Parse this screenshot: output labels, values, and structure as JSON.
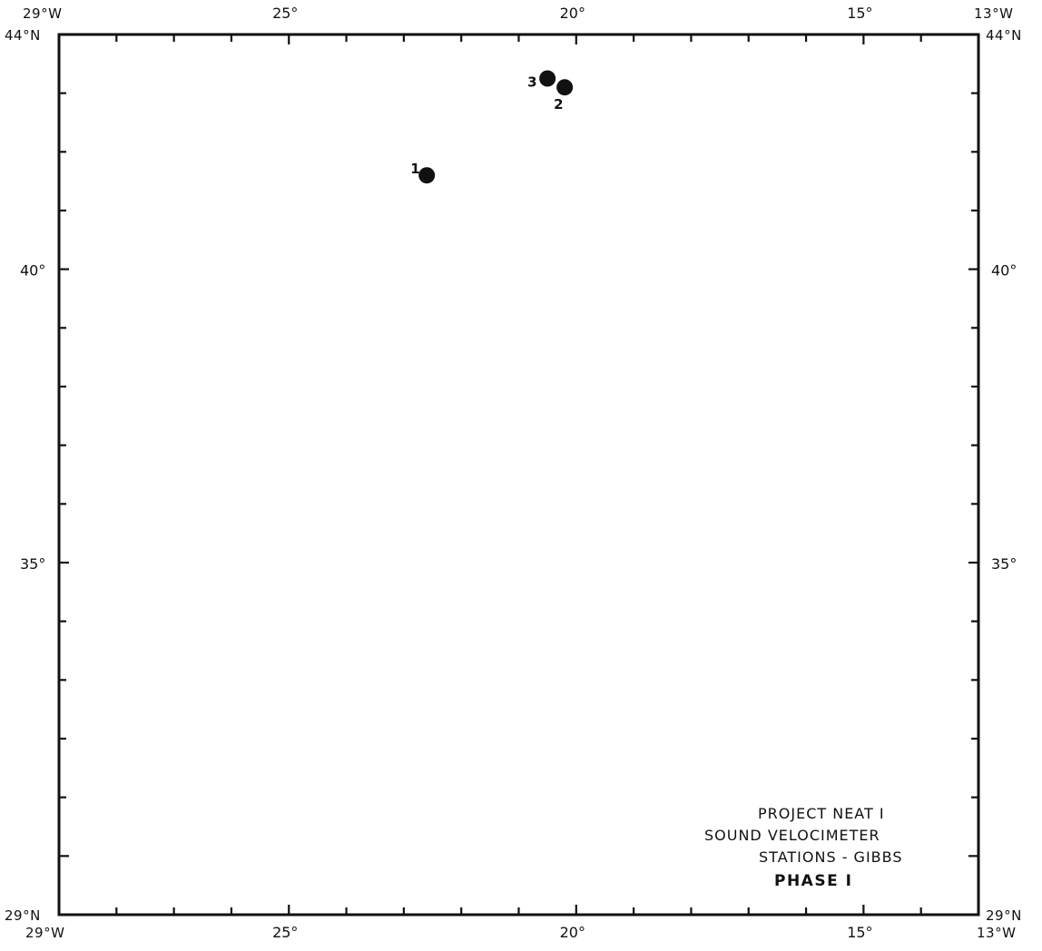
{
  "map": {
    "lon_range": [
      -29,
      -13
    ],
    "lat_range": [
      29,
      44
    ],
    "corners": {
      "top_left_lon": "29°W",
      "top_left_lat": "44°N",
      "top_right_lon": "13°W",
      "top_right_lat": "44°N",
      "bottom_left_lon": "29°W",
      "bottom_left_lat": "29°N",
      "bottom_right_lon": "13°W",
      "bottom_right_lat": "29°N"
    },
    "lon_labels": [
      {
        "lon": -25,
        "text": "25°"
      },
      {
        "lon": -20,
        "text": "20°"
      },
      {
        "lon": -15,
        "text": "15°"
      }
    ],
    "lat_labels": [
      {
        "lat": 40,
        "text": "40°"
      },
      {
        "lat": 35,
        "text": "35°"
      }
    ],
    "stations": [
      {
        "id": "1",
        "lon": -22.6,
        "lat": 41.6
      },
      {
        "id": "2",
        "lon": -20.2,
        "lat": 43.1
      },
      {
        "id": "3",
        "lon": -20.5,
        "lat": 43.25
      }
    ]
  },
  "legend": {
    "line1": "PROJECT  NEAT  I",
    "line2": "SOUND VELOCIMETER",
    "line3": "STATIONS - GIBBS",
    "line4": "PHASE  I"
  }
}
